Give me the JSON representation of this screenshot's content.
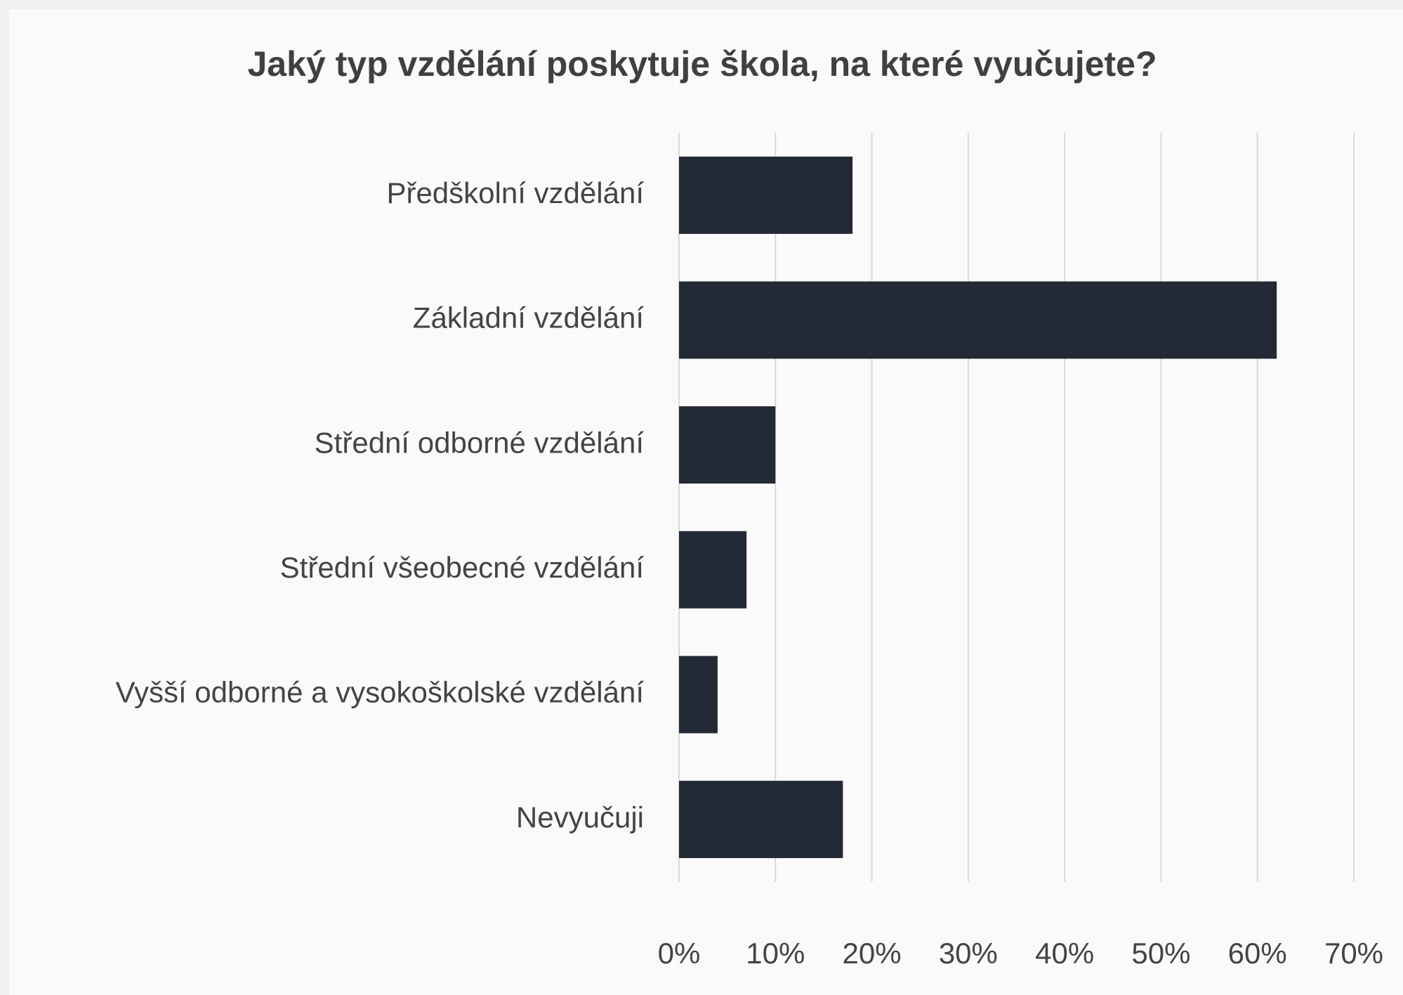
{
  "chart_data": {
    "type": "barh",
    "title": "Jaký typ vzdělání poskytuje škola, na které vyučujete?",
    "categories": [
      "Předškolní vzdělání",
      "Základní vzdělání",
      "Střední odborné vzdělání",
      "Střední všeobecné vzdělání",
      "Vyšší odborné a vysokoškolské vzdělání",
      "Nevyučuji"
    ],
    "values": [
      18,
      62,
      10,
      7,
      4,
      17
    ],
    "color": "#232a35",
    "xlim": [
      0,
      70
    ],
    "xticks": [
      {
        "value": 0,
        "label": "0%"
      },
      {
        "value": 10,
        "label": "10%"
      },
      {
        "value": 20,
        "label": "20%"
      },
      {
        "value": 30,
        "label": "30%"
      },
      {
        "value": 40,
        "label": "40%"
      },
      {
        "value": 50,
        "label": "50%"
      },
      {
        "value": 60,
        "label": "60%"
      },
      {
        "value": 70,
        "label": "70%"
      }
    ],
    "grid": true
  }
}
